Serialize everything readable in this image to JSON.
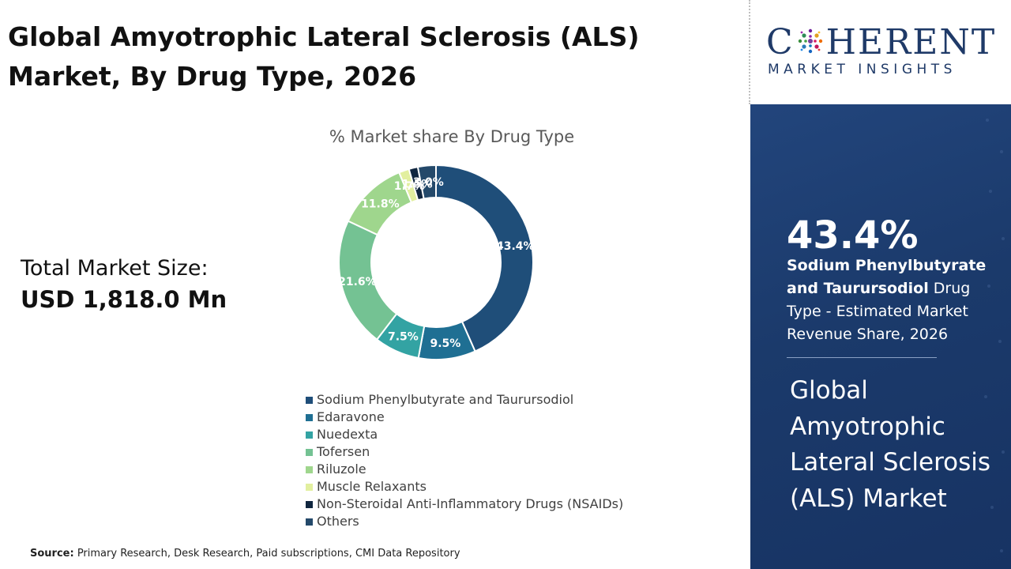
{
  "page": {
    "title": "Global Amyotrophic Lateral Sclerosis (ALS) Market, By Drug Type, 2026",
    "market_size_label": "Total Market Size:",
    "market_size_value": "USD 1,818.0 Mn",
    "source_label": "Source:",
    "source_text": " Primary Research, Desk Research, Paid subscriptions, CMI Data Repository"
  },
  "logo": {
    "part1": "C",
    "part2": "HERENT",
    "sub": "MARKET INSIGHTS"
  },
  "panel": {
    "highlight_value": "43.4%",
    "highlight_bold": "Sodium Phenylbutyrate and Taurursodiol",
    "highlight_rest": " Drug Type - Estimated Market Revenue Share, 2026",
    "title": "Global Amyotrophic Lateral Sclerosis (ALS) Market",
    "colors": {
      "background": "#1e3f73",
      "text": "#ffffff"
    }
  },
  "chart_data": {
    "type": "pie",
    "title": "% Market share By Drug Type",
    "categories": [
      "Sodium Phenylbutyrate and Taurursodiol",
      "Edaravone",
      "Nuedexta",
      "Tofersen",
      "Riluzole",
      "Muscle Relaxants",
      "Non-Steroidal Anti-Inflammatory Drugs (NSAIDs)",
      "Others"
    ],
    "values": [
      43.4,
      9.5,
      7.5,
      21.6,
      11.8,
      1.7,
      1.5,
      3.0
    ],
    "labels": [
      "43.4%",
      "9.5%",
      "7.5%",
      "21.6%",
      "11.8%",
      "1.7%",
      "1.5%",
      "3.0%"
    ],
    "colors": [
      "#1f4e79",
      "#1f6f93",
      "#33a3a3",
      "#74c293",
      "#9fd68d",
      "#e2ef9f",
      "#10263f",
      "#24496a"
    ],
    "donut": true,
    "legend_position": "bottom"
  }
}
